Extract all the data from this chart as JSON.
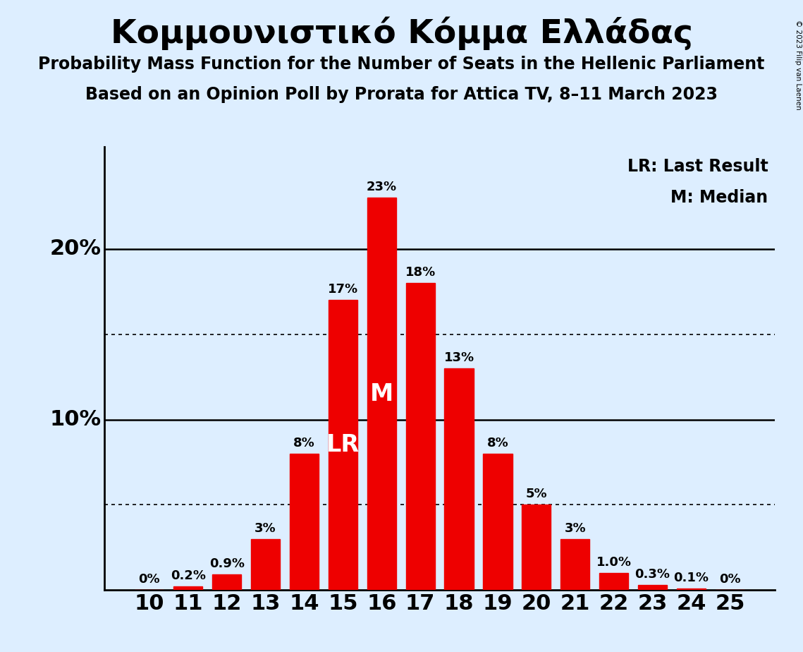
{
  "title": "Κομμουνιστικό Κόμμα Ελλάδας",
  "subtitle1": "Probability Mass Function for the Number of Seats in the Hellenic Parliament",
  "subtitle2": "Based on an Opinion Poll by Prorata for Attica TV, 8–11 March 2023",
  "copyright": "© 2023 Filip van Laenen",
  "categories": [
    10,
    11,
    12,
    13,
    14,
    15,
    16,
    17,
    18,
    19,
    20,
    21,
    22,
    23,
    24,
    25
  ],
  "values": [
    0.0,
    0.2,
    0.9,
    3.0,
    8.0,
    17.0,
    23.0,
    18.0,
    13.0,
    8.0,
    5.0,
    3.0,
    1.0,
    0.3,
    0.1,
    0.0
  ],
  "labels": [
    "0%",
    "0.2%",
    "0.9%",
    "3%",
    "8%",
    "17%",
    "23%",
    "18%",
    "13%",
    "8%",
    "5%",
    "3%",
    "1.0%",
    "0.3%",
    "0.1%",
    "0%"
  ],
  "bar_color": "#ee0000",
  "background_color": "#ddeeff",
  "dotted_lines": [
    5.0,
    15.0
  ],
  "solid_lines": [
    10.0,
    20.0
  ],
  "lr_seat": 15,
  "median_seat": 16,
  "lr_label": "LR",
  "median_label": "M",
  "legend_lr": "LR: Last Result",
  "legend_m": "M: Median",
  "bar_width": 0.75,
  "ylim": [
    0,
    26
  ],
  "title_fontsize": 34,
  "subtitle_fontsize": 17,
  "tick_fontsize": 22,
  "label_fontsize": 13,
  "legend_fontsize": 17,
  "inner_label_fontsize": 24,
  "ytick_labels": [
    "10%",
    "20%"
  ],
  "ytick_values": [
    10,
    20
  ]
}
